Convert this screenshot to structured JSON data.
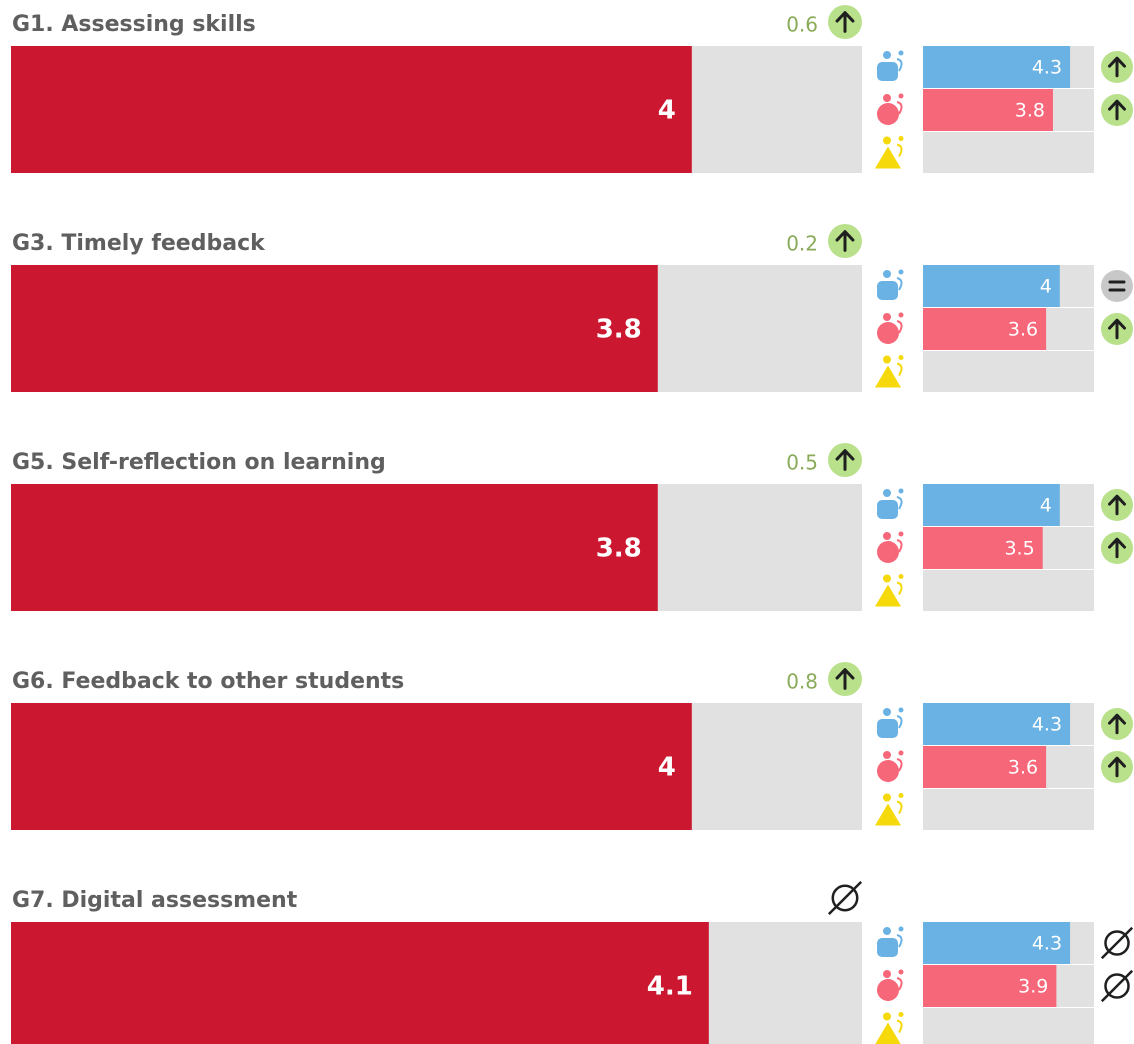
{
  "chart_data": {
    "type": "bar",
    "xlim": [
      0,
      5
    ],
    "bar_color": "#cb1730",
    "track_color": "#e1e1e1",
    "group_colors": [
      "#6ab2e3",
      "#f7677a",
      "#f5d90a"
    ],
    "items": [
      {
        "title": "G1. Assessing skills",
        "value": 4,
        "change": 0.6,
        "trend": "up",
        "groups": [
          {
            "value": 4.3,
            "trend": "up"
          },
          {
            "value": 3.8,
            "trend": "up"
          },
          {
            "value": null,
            "trend": null
          }
        ]
      },
      {
        "title": "G3. Timely feedback",
        "value": 3.8,
        "change": 0.2,
        "trend": "up",
        "groups": [
          {
            "value": 4,
            "trend": "equal"
          },
          {
            "value": 3.6,
            "trend": "up"
          },
          {
            "value": null,
            "trend": null
          }
        ]
      },
      {
        "title": "G5. Self-reflection on learning",
        "value": 3.8,
        "change": 0.5,
        "trend": "up",
        "groups": [
          {
            "value": 4,
            "trend": "up"
          },
          {
            "value": 3.5,
            "trend": "up"
          },
          {
            "value": null,
            "trend": null
          }
        ]
      },
      {
        "title": "G6. Feedback to other students",
        "value": 4,
        "change": 0.8,
        "trend": "up",
        "groups": [
          {
            "value": 4.3,
            "trend": "up"
          },
          {
            "value": 3.6,
            "trend": "up"
          },
          {
            "value": null,
            "trend": null
          }
        ]
      },
      {
        "title": "G7. Digital assessment",
        "value": 4.1,
        "change": null,
        "trend": "none",
        "groups": [
          {
            "value": 4.3,
            "trend": "none"
          },
          {
            "value": 3.9,
            "trend": "none"
          },
          {
            "value": null,
            "trend": null
          }
        ]
      }
    ]
  }
}
